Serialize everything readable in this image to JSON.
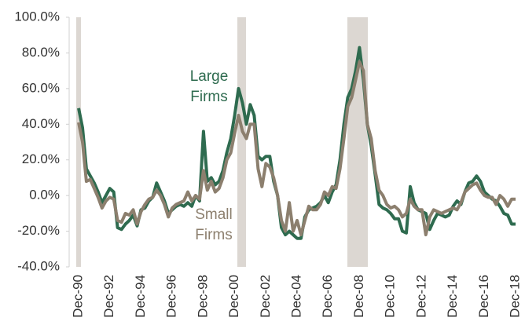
{
  "chart_data": {
    "type": "line",
    "categories": [
      "Dec-90",
      null,
      null,
      null,
      null,
      null,
      null,
      null,
      "Dec-92",
      null,
      null,
      null,
      null,
      null,
      null,
      null,
      "Dec-94",
      null,
      null,
      null,
      null,
      null,
      null,
      null,
      "Dec-96",
      null,
      null,
      null,
      null,
      null,
      null,
      null,
      "Dec-98",
      null,
      null,
      null,
      null,
      null,
      null,
      null,
      "Dec-00",
      null,
      null,
      null,
      null,
      null,
      null,
      null,
      "Dec-02",
      null,
      null,
      null,
      null,
      null,
      null,
      null,
      "Dec-04",
      null,
      null,
      null,
      null,
      null,
      null,
      null,
      "Dec-06",
      null,
      null,
      null,
      null,
      null,
      null,
      null,
      "Dec-08",
      null,
      null,
      null,
      null,
      null,
      null,
      null,
      "Dec-10",
      null,
      null,
      null,
      null,
      null,
      null,
      null,
      "Dec-12",
      null,
      null,
      null,
      null,
      null,
      null,
      null,
      "Dec-14",
      null,
      null,
      null,
      null,
      null,
      null,
      null,
      "Dec-16",
      null,
      null,
      null,
      null,
      null,
      null,
      null,
      "Dec-18"
    ],
    "series": [
      {
        "name": "Large Firms",
        "color": "#2e6b4f",
        "values": [
          49,
          38,
          15,
          11,
          7,
          2,
          -4,
          0,
          4,
          2,
          -18,
          -19,
          -16,
          -14,
          -11,
          -17,
          -8,
          -7,
          -3,
          -1,
          7,
          2,
          -3,
          -10,
          -8,
          -6,
          -5,
          -6,
          -4,
          -6,
          0,
          -3,
          36,
          8,
          10,
          6,
          8,
          14,
          24,
          32,
          45,
          60,
          52,
          40,
          51,
          45,
          22,
          20,
          22,
          22,
          8,
          0,
          -18,
          -22,
          -20,
          -22,
          -24,
          -24,
          -12,
          -8,
          -7,
          -6,
          -4,
          0,
          -4,
          2,
          6,
          20,
          40,
          55,
          60,
          70,
          83,
          65,
          40,
          28,
          12,
          -5,
          -7,
          -8,
          -10,
          -13,
          -13,
          -20,
          -21,
          5,
          -4,
          -8,
          -9,
          -10,
          -19,
          -14,
          -10,
          -11,
          -12,
          -11,
          -6,
          -3,
          -5,
          2,
          7,
          8,
          11,
          8,
          2,
          0,
          -2,
          -3,
          -6,
          -10,
          -11,
          -16,
          -16
        ]
      },
      {
        "name": "Small Firms",
        "color": "#8c7f6e",
        "values": [
          41,
          30,
          8,
          9,
          4,
          -1,
          -7,
          -3,
          -1,
          -2,
          -14,
          -15,
          -10,
          -11,
          -8,
          -16,
          -9,
          -5,
          -2,
          -1,
          3,
          0,
          -5,
          -12,
          -7,
          -5,
          -4,
          -3,
          2,
          -3,
          0,
          -2,
          14,
          3,
          8,
          2,
          4,
          10,
          20,
          24,
          35,
          45,
          36,
          32,
          40,
          40,
          15,
          5,
          18,
          16,
          10,
          0,
          -14,
          -20,
          -4,
          -20,
          -14,
          -22,
          -14,
          -6,
          -8,
          -8,
          -5,
          2,
          0,
          5,
          4,
          15,
          32,
          50,
          55,
          65,
          75,
          70,
          40,
          32,
          14,
          3,
          0,
          -5,
          -7,
          -6,
          -8,
          -12,
          -10,
          -2,
          -6,
          -8,
          -8,
          -22,
          -12,
          -8,
          -9,
          -10,
          -9,
          -8,
          -7,
          -8,
          -4,
          2,
          4,
          6,
          7,
          3,
          0,
          -1,
          -1,
          -5,
          0,
          -2,
          -6,
          -2,
          -2
        ]
      }
    ],
    "annotations": [
      [
        "Large",
        "Firms"
      ],
      [
        "Small",
        "Firms"
      ]
    ],
    "ylim": [
      -40,
      100
    ],
    "yticks": [
      {
        "value": -40,
        "label": "-40.0%"
      },
      {
        "value": -20,
        "label": "-20.0%"
      },
      {
        "value": 0,
        "label": "0.0%"
      },
      {
        "value": 20,
        "label": "20.0%"
      },
      {
        "value": 40,
        "label": "40.0%"
      },
      {
        "value": 60,
        "label": "60.0%"
      },
      {
        "value": 80,
        "label": "80.0%"
      },
      {
        "value": 100,
        "label": "100.0%"
      }
    ],
    "grid": false
  }
}
